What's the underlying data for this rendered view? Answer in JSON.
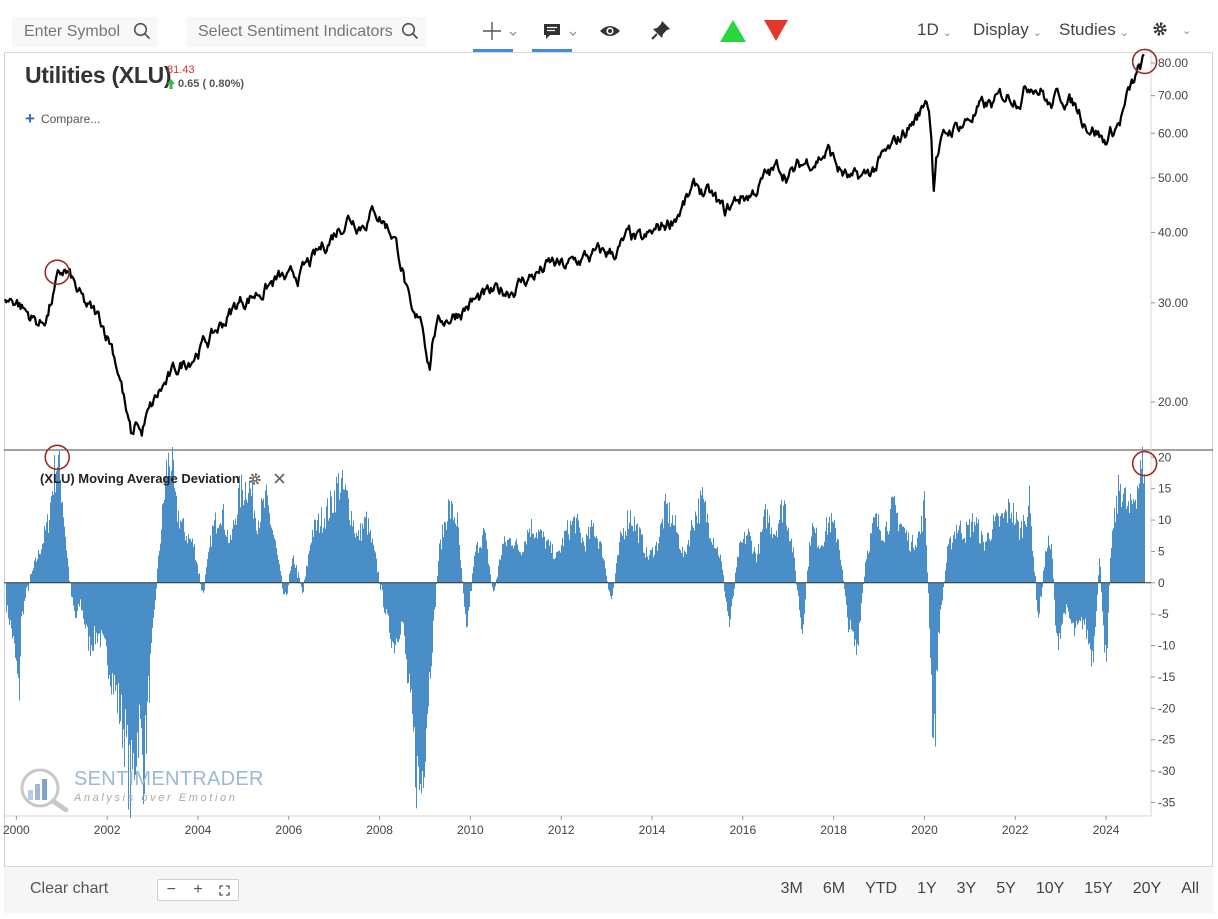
{
  "toolbar": {
    "symbol_placeholder": "Enter Symbol",
    "sentiment_placeholder": "Select Sentiment Indicators",
    "interval": "1D",
    "display_label": "Display",
    "studies_label": "Studies"
  },
  "header": {
    "title": "Utilities (XLU)",
    "last_price": "81.43",
    "change": "0.65 ( 0.80%)",
    "compare_label": "Compare..."
  },
  "study": {
    "title": "(XLU) Moving Average Deviation"
  },
  "watermark": {
    "line1": "SENTIMENTRADER",
    "line2": "Analysis over Emotion"
  },
  "footer": {
    "clear_label": "Clear chart",
    "ranges": [
      "3M",
      "6M",
      "YTD",
      "1Y",
      "3Y",
      "5Y",
      "10Y",
      "15Y",
      "20Y",
      "All"
    ]
  },
  "colors": {
    "price_line": "#000000",
    "histogram": "#4a8ec8",
    "marker": "#9b2b2b",
    "up_arrow": "#29d640",
    "down_arrow": "#e0392b"
  },
  "chart_data": [
    {
      "type": "line",
      "scale": "log",
      "ylim": [
        16.5,
        83
      ],
      "y_ticks": [
        "80.00",
        "70.00",
        "60.00",
        "50.00",
        "40.00",
        "30.00",
        "20.00"
      ],
      "y_tick_values": [
        80,
        70,
        60,
        50,
        40,
        30,
        20
      ],
      "xlim": [
        1999.75,
        2024.99
      ],
      "series": [
        {
          "x": [
            1999.75,
            2000.0,
            2000.2,
            2000.4,
            2000.55,
            2000.7,
            2000.9,
            2001.05,
            2001.2,
            2001.35,
            2001.5,
            2001.7,
            2001.9,
            2002.1,
            2002.3,
            2002.45,
            2002.55,
            2002.65,
            2002.75,
            2002.85,
            2003.0,
            2003.2,
            2003.4,
            2003.6,
            2003.8,
            2004.0,
            2004.3,
            2004.6,
            2004.9,
            2005.2,
            2005.5,
            2005.8,
            2006.0,
            2006.3,
            2006.6,
            2006.9,
            2007.1,
            2007.3,
            2007.6,
            2007.9,
            2008.1,
            2008.3,
            2008.5,
            2008.7,
            2008.8,
            2008.9,
            2009.0,
            2009.1,
            2009.2,
            2009.4,
            2009.7,
            2010.0,
            2010.3,
            2010.6,
            2010.9,
            2011.2,
            2011.5,
            2011.8,
            2012.1,
            2012.5,
            2012.9,
            2013.2,
            2013.5,
            2013.8,
            2014.1,
            2014.4,
            2014.7,
            2015.0,
            2015.3,
            2015.6,
            2015.9,
            2016.2,
            2016.5,
            2016.8,
            2017.1,
            2017.5,
            2017.9,
            2018.1,
            2018.4,
            2018.7,
            2019.0,
            2019.3,
            2019.6,
            2019.9,
            2020.05,
            2020.15,
            2020.2,
            2020.25,
            2020.4,
            2020.6,
            2020.9,
            2021.2,
            2021.5,
            2021.8,
            2022.1,
            2022.4,
            2022.6,
            2022.75,
            2022.9,
            2023.1,
            2023.4,
            2023.6,
            2023.8,
            2023.95,
            2024.1,
            2024.3,
            2024.5,
            2024.7,
            2024.85
          ],
          "y": [
            30,
            30.5,
            29,
            28,
            27.5,
            29,
            32.5,
            34,
            33,
            31,
            29.5,
            28.5,
            27.5,
            25.5,
            22,
            18.5,
            17,
            18.5,
            17.5,
            18.5,
            19.5,
            21,
            22,
            23,
            24,
            25,
            26,
            28,
            30,
            31,
            32,
            33,
            32.5,
            34,
            36,
            39,
            41,
            43,
            42,
            44,
            42,
            40,
            35,
            28,
            27,
            28.5,
            26,
            23.5,
            27,
            28,
            29,
            30,
            30.5,
            31,
            32,
            33,
            34,
            35,
            34.5,
            36,
            36.5,
            37,
            39,
            38,
            40,
            42,
            45,
            48,
            46,
            43,
            46,
            47,
            50,
            52,
            51,
            54,
            56,
            52,
            49,
            50,
            53,
            56,
            61,
            65,
            70,
            62,
            48,
            55,
            58,
            61,
            63,
            66,
            67,
            70,
            71,
            75,
            72,
            67,
            69,
            70,
            66,
            63,
            61,
            58,
            60,
            63,
            70,
            76,
            80.5
          ]
        }
      ]
    },
    {
      "type": "bar",
      "ylim": [
        -37,
        21
      ],
      "y_ticks": [
        "20",
        "15",
        "10",
        "5",
        "0",
        "-5",
        "-10",
        "-15",
        "-20",
        "-25",
        "-30",
        "-35"
      ],
      "y_tick_values": [
        20,
        15,
        10,
        5,
        0,
        -5,
        -10,
        -15,
        -20,
        -25,
        -30,
        -35
      ],
      "x_ticks": [
        "2000",
        "2002",
        "2004",
        "2006",
        "2008",
        "2010",
        "2012",
        "2014",
        "2016",
        "2018",
        "2020",
        "2022",
        "2024"
      ],
      "x_tick_values": [
        2000,
        2002,
        2004,
        2006,
        2008,
        2010,
        2012,
        2014,
        2016,
        2018,
        2020,
        2022,
        2024
      ],
      "xlim": [
        1999.75,
        2024.99
      ],
      "series": [
        {
          "x": [
            1999.75,
            1999.9,
            2000.0,
            2000.05,
            2000.1,
            2000.2,
            2000.4,
            2000.55,
            2000.7,
            2000.8,
            2000.9,
            2001.0,
            2001.1,
            2001.2,
            2001.3,
            2001.4,
            2001.6,
            2001.8,
            2002.0,
            2002.2,
            2002.4,
            2002.5,
            2002.6,
            2002.7,
            2002.8,
            2002.9,
            2003.0,
            2003.1,
            2003.2,
            2003.3,
            2003.4,
            2003.5,
            2003.7,
            2003.9,
            2004.1,
            2004.3,
            2004.5,
            2004.7,
            2004.9,
            2005.1,
            2005.3,
            2005.5,
            2005.7,
            2005.9,
            2006.1,
            2006.3,
            2006.5,
            2006.7,
            2006.9,
            2007.1,
            2007.3,
            2007.5,
            2007.7,
            2007.9,
            2008.1,
            2008.3,
            2008.5,
            2008.6,
            2008.7,
            2008.8,
            2008.9,
            2009.0,
            2009.1,
            2009.2,
            2009.3,
            2009.5,
            2009.7,
            2009.9,
            2010.1,
            2010.3,
            2010.5,
            2010.7,
            2010.9,
            2011.1,
            2011.3,
            2011.5,
            2011.7,
            2011.9,
            2012.1,
            2012.3,
            2012.5,
            2012.7,
            2012.9,
            2013.1,
            2013.3,
            2013.5,
            2013.7,
            2013.9,
            2014.1,
            2014.3,
            2014.5,
            2014.7,
            2014.9,
            2015.1,
            2015.3,
            2015.5,
            2015.7,
            2015.9,
            2016.1,
            2016.3,
            2016.5,
            2016.7,
            2016.9,
            2017.1,
            2017.3,
            2017.5,
            2017.7,
            2017.9,
            2018.1,
            2018.3,
            2018.5,
            2018.7,
            2018.9,
            2019.1,
            2019.3,
            2019.5,
            2019.7,
            2019.9,
            2020.0,
            2020.1,
            2020.2,
            2020.3,
            2020.5,
            2020.7,
            2020.9,
            2021.1,
            2021.3,
            2021.5,
            2021.7,
            2021.9,
            2022.1,
            2022.3,
            2022.5,
            2022.7,
            2022.8,
            2022.9,
            2023.1,
            2023.3,
            2023.5,
            2023.7,
            2023.85,
            2024.0,
            2024.1,
            2024.3,
            2024.5,
            2024.7,
            2024.85
          ],
          "values": [
            -3,
            -8,
            -14,
            -19,
            -6,
            -2,
            3,
            6,
            10,
            16,
            20,
            14,
            5,
            -2,
            -6,
            -3,
            -10,
            -8,
            -12,
            -18,
            -25,
            -33,
            -28,
            -22,
            -30,
            -18,
            -8,
            2,
            10,
            18,
            20,
            12,
            8,
            6,
            -2,
            8,
            12,
            6,
            14,
            16,
            10,
            13,
            6,
            -3,
            4,
            -2,
            8,
            10,
            12,
            16,
            13,
            7,
            10,
            4,
            -4,
            -10,
            -6,
            -15,
            -22,
            -30,
            -33,
            -24,
            -14,
            -5,
            5,
            12,
            10,
            -8,
            5,
            8,
            -2,
            6,
            7,
            5,
            9,
            8,
            6,
            4,
            8,
            10,
            6,
            9,
            5,
            -3,
            7,
            11,
            8,
            4,
            6,
            12,
            9,
            4,
            10,
            13,
            8,
            4,
            -7,
            5,
            8,
            4,
            11,
            8,
            13,
            5,
            -8,
            9,
            6,
            10,
            7,
            -6,
            -11,
            4,
            10,
            8,
            12,
            9,
            6,
            8,
            13,
            -6,
            -28,
            -8,
            5,
            9,
            8,
            10,
            6,
            9,
            10,
            12,
            8,
            13,
            -6,
            7,
            5,
            -10,
            -4,
            -8,
            -6,
            -12,
            4,
            -15,
            6,
            16,
            11,
            16,
            20
          ]
        }
      ]
    }
  ]
}
